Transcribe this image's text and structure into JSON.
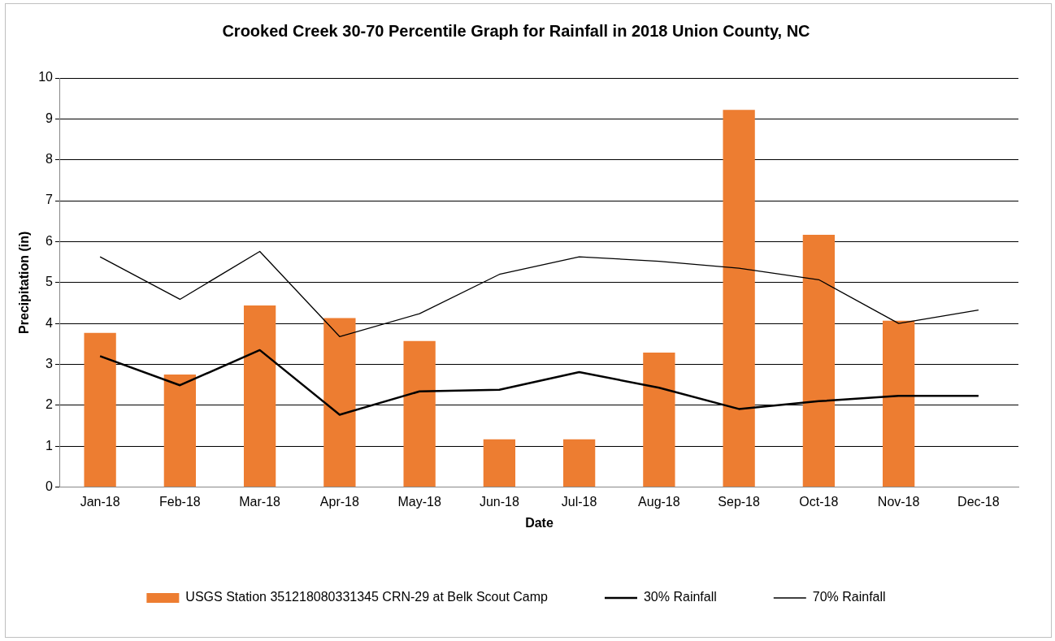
{
  "chart_data": {
    "type": "bar",
    "title": "Crooked Creek 30-70 Percentile Graph for Rainfall in 2018 Union County, NC",
    "xlabel": "Date",
    "ylabel": "Precipitation (in)",
    "categories": [
      "Jan-18",
      "Feb-18",
      "Mar-18",
      "Apr-18",
      "May-18",
      "Jun-18",
      "Jul-18",
      "Aug-18",
      "Sep-18",
      "Oct-18",
      "Nov-18",
      "Dec-18"
    ],
    "series": [
      {
        "name": "USGS Station 351218080331345 CRN-29 at Belk Scout Camp",
        "color": "#ed7d31",
        "values": [
          3.77,
          2.75,
          4.44,
          4.13,
          3.57,
          1.17,
          1.17,
          3.29,
          9.22,
          6.17,
          4.07,
          null
        ]
      },
      {
        "name": "30% Rainfall",
        "type": "line",
        "color": "#000000",
        "values": [
          3.2,
          2.49,
          3.35,
          1.77,
          2.34,
          2.38,
          2.81,
          2.43,
          1.91,
          2.1,
          2.23,
          2.23
        ]
      },
      {
        "name": "70% Rainfall",
        "type": "line",
        "color": "#000000",
        "values": [
          5.63,
          4.59,
          5.76,
          3.68,
          4.24,
          5.2,
          5.63,
          5.52,
          5.35,
          5.07,
          4.0,
          4.33
        ]
      }
    ],
    "ylim": [
      0,
      10
    ],
    "yticks": [
      0,
      1,
      2,
      3,
      4,
      5,
      6,
      7,
      8,
      9,
      10
    ],
    "grid": "y",
    "legend": "bottom",
    "marker": "none",
    "line_style": "solid"
  }
}
